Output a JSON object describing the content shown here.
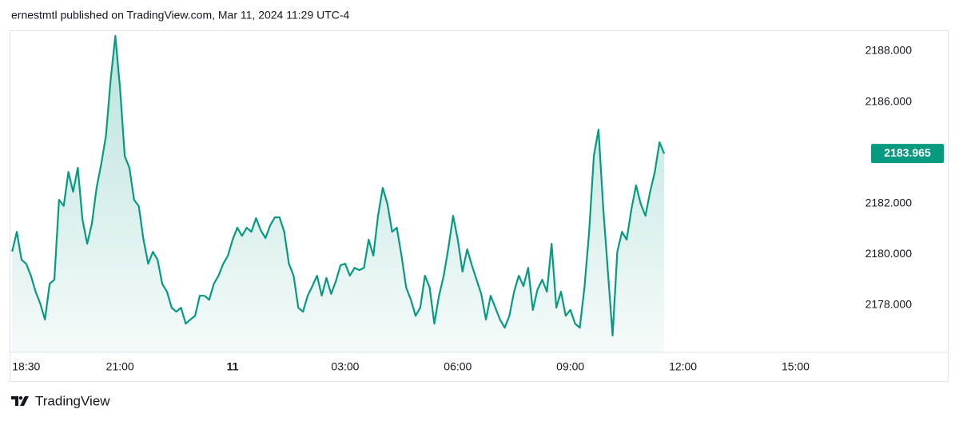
{
  "chart_data": {
    "type": "area",
    "attribution": "ernestmtl published on TradingView.com, Mar 11, 2024 11:29 UTC-4",
    "brand": "TradingView",
    "color": "#089981",
    "x": [
      18.125,
      18.25,
      18.375,
      18.5,
      18.625,
      18.75,
      18.875,
      19,
      19.125,
      19.25,
      19.375,
      19.5,
      19.625,
      19.75,
      19.875,
      20,
      20.125,
      20.25,
      20.375,
      20.5,
      20.625,
      20.75,
      20.875,
      21,
      21.125,
      21.25,
      21.375,
      21.5,
      21.625,
      21.75,
      21.875,
      22,
      22.125,
      22.25,
      22.375,
      22.5,
      22.625,
      22.75,
      22.875,
      23,
      23.125,
      23.25,
      23.375,
      23.5,
      23.625,
      23.75,
      23.875,
      24,
      24.125,
      24.25,
      24.375,
      24.5,
      24.625,
      24.75,
      24.875,
      25,
      25.125,
      25.25,
      25.375,
      25.5,
      25.625,
      25.75,
      25.875,
      26,
      26.125,
      26.25,
      26.375,
      26.5,
      26.625,
      26.75,
      26.875,
      27,
      27.125,
      27.25,
      27.375,
      27.5,
      27.625,
      27.75,
      27.875,
      28,
      28.125,
      28.25,
      28.375,
      28.5,
      28.625,
      28.75,
      28.875,
      29,
      29.125,
      29.25,
      29.375,
      29.5,
      29.625,
      29.75,
      29.875,
      30,
      30.125,
      30.25,
      30.375,
      30.5,
      30.625,
      30.75,
      30.875,
      31,
      31.125,
      31.25,
      31.375,
      31.5,
      31.625,
      31.75,
      31.875,
      32,
      32.125,
      32.25,
      32.375,
      32.5,
      32.625,
      32.75,
      32.875,
      33,
      33.125,
      33.25,
      33.375,
      33.5,
      33.625,
      33.75,
      33.875,
      34,
      34.125,
      34.25,
      34.375,
      34.5,
      34.625,
      34.75,
      34.875,
      35,
      35.125,
      35.25,
      35.375,
      35.5
    ],
    "values": [
      2180.1,
      2180.88,
      2179.78,
      2179.62,
      2179.15,
      2178.52,
      2178.05,
      2177.42,
      2178.83,
      2178.99,
      2182.14,
      2181.9,
      2183.24,
      2182.46,
      2183.4,
      2181.35,
      2180.41,
      2181.2,
      2182.61,
      2183.56,
      2184.66,
      2186.87,
      2188.6,
      2186.55,
      2183.87,
      2183.4,
      2182.14,
      2181.89,
      2180.57,
      2179.62,
      2180.09,
      2179.78,
      2178.83,
      2178.52,
      2177.89,
      2177.73,
      2177.89,
      2177.26,
      2177.42,
      2177.57,
      2178.36,
      2178.36,
      2178.2,
      2178.83,
      2179.15,
      2179.62,
      2179.94,
      2180.57,
      2181.04,
      2180.72,
      2181.04,
      2180.88,
      2181.42,
      2180.94,
      2180.63,
      2181.13,
      2181.45,
      2181.45,
      2180.88,
      2179.62,
      2179.15,
      2177.89,
      2177.73,
      2178.36,
      2178.74,
      2179.15,
      2178.36,
      2179.06,
      2178.43,
      2178.93,
      2179.56,
      2179.62,
      2179.15,
      2179.46,
      2179.37,
      2179.46,
      2180.57,
      2179.94,
      2181.51,
      2182.61,
      2181.98,
      2180.88,
      2181.04,
      2179.94,
      2178.68,
      2178.2,
      2177.57,
      2177.89,
      2179.15,
      2178.68,
      2177.26,
      2178.36,
      2179.15,
      2180.25,
      2181.51,
      2180.57,
      2179.31,
      2180.19,
      2179.56,
      2178.99,
      2178.43,
      2177.42,
      2178.36,
      2177.89,
      2177.42,
      2177.1,
      2177.57,
      2178.52,
      2179.15,
      2178.74,
      2179.46,
      2177.8,
      2178.61,
      2178.99,
      2178.52,
      2180.41,
      2177.89,
      2178.52,
      2177.57,
      2177.8,
      2177.26,
      2177.1,
      2178.68,
      2180.88,
      2183.87,
      2184.91,
      2181.83,
      2179.31,
      2176.79,
      2180.09,
      2180.88,
      2180.57,
      2181.76,
      2182.71,
      2181.98,
      2181.51,
      2182.46,
      2183.24,
      2184.41,
      2183.965
    ],
    "xlim": [
      18.1,
      40.8
    ],
    "xticks": [
      {
        "value": 18.5,
        "label": "18:30"
      },
      {
        "value": 21,
        "label": "21:00"
      },
      {
        "value": 24,
        "label": "11"
      },
      {
        "value": 27,
        "label": "03:00"
      },
      {
        "value": 30,
        "label": "06:00"
      },
      {
        "value": 33,
        "label": "09:00"
      },
      {
        "value": 36,
        "label": "12:00"
      },
      {
        "value": 39,
        "label": "15:00"
      }
    ],
    "ylim": [
      2176.13,
      2188.82
    ],
    "yticks": [
      {
        "value": 2178,
        "label": "2178.000"
      },
      {
        "value": 2180,
        "label": "2180.000"
      },
      {
        "value": 2182,
        "label": "2182.000"
      },
      {
        "value": 2186,
        "label": "2186.000"
      },
      {
        "value": 2188,
        "label": "2188.000"
      }
    ],
    "grid": false
  }
}
